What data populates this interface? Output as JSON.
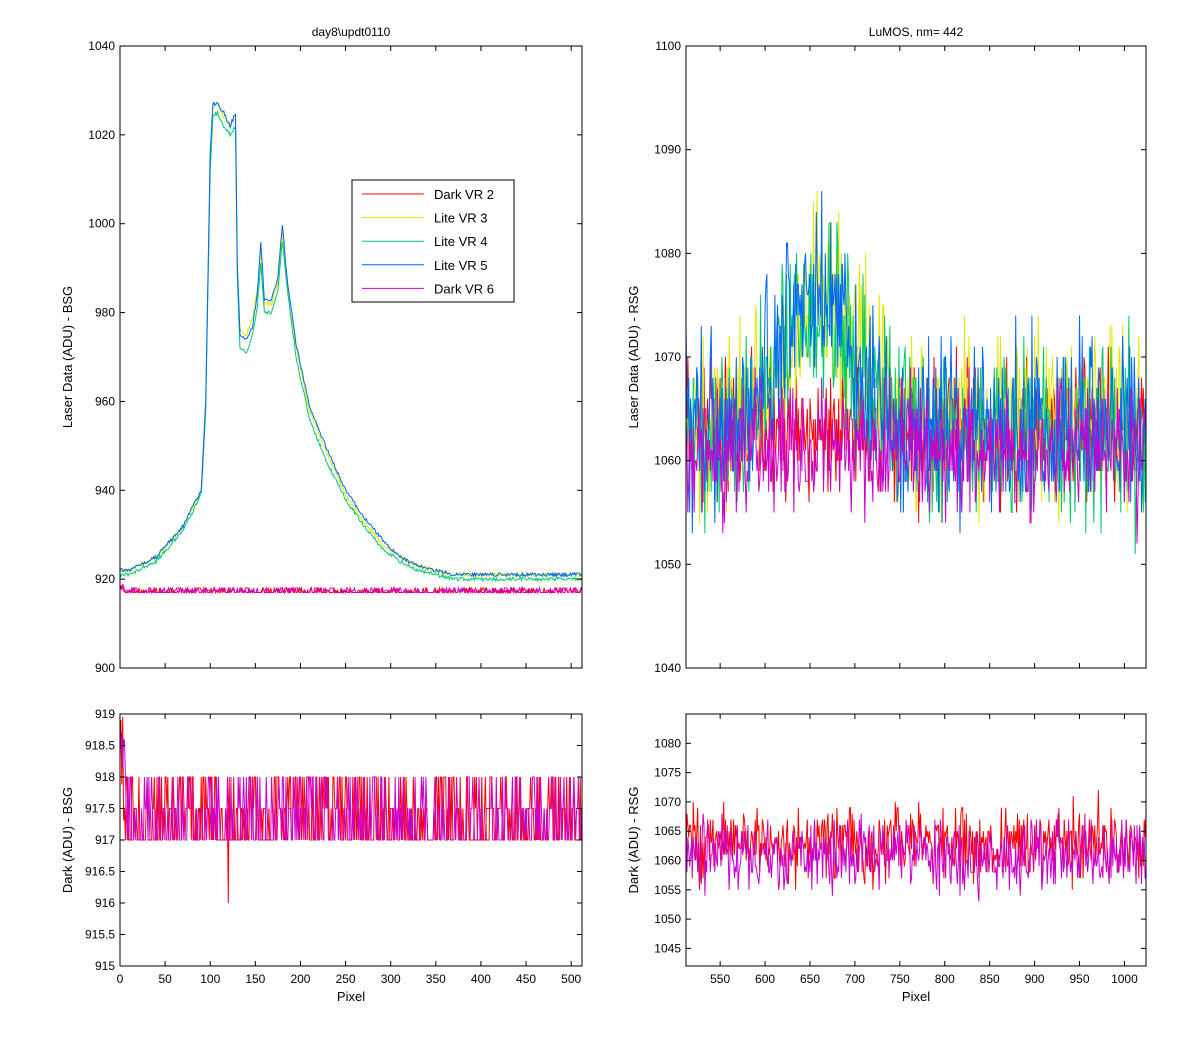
{
  "chart_data": [
    {
      "id": "top_left",
      "type": "line",
      "title": "day8\\updt0110",
      "xlabel": "",
      "ylabel": "Laser Data (ADU) - BSG",
      "xlim": [
        0,
        512
      ],
      "ylim": [
        900,
        1040
      ],
      "xticks": [
        0,
        50,
        100,
        150,
        200,
        250,
        300,
        350,
        400,
        450,
        500
      ],
      "yticks": [
        900,
        920,
        940,
        960,
        980,
        1000,
        1020,
        1040
      ],
      "xticklabels_visible": false,
      "legend": {
        "placement": "upper-center-right",
        "entries": [
          "Dark VR 2",
          "Lite VR 3",
          "Lite VR 4",
          "Lite VR 5",
          "Dark VR 6"
        ]
      },
      "series": [
        {
          "name": "Dark VR 2",
          "color": "#ff0000",
          "kind": "dark_bsg"
        },
        {
          "name": "Lite VR 3",
          "color": "#e6e600",
          "kind": "lite_bsg",
          "x": [
            0,
            10,
            40,
            70,
            90,
            95,
            100,
            103,
            108,
            115,
            122,
            128,
            130,
            133,
            140,
            147,
            152,
            156,
            160,
            168,
            175,
            180,
            185,
            195,
            210,
            230,
            250,
            270,
            290,
            310,
            330,
            350,
            370,
            390,
            420,
            460,
            512
          ],
          "y": [
            922,
            922,
            925,
            932,
            940,
            960,
            1015,
            1026,
            1027,
            1024,
            1022,
            1024,
            990,
            976,
            975,
            979,
            985,
            994,
            982,
            982,
            987,
            998,
            988,
            972,
            958,
            948,
            939,
            933,
            928,
            925,
            923,
            922,
            921,
            921,
            921,
            921,
            921
          ]
        },
        {
          "name": "Lite VR 4",
          "color": "#00cc66",
          "kind": "lite_bsg",
          "x": [
            0,
            10,
            40,
            70,
            90,
            95,
            100,
            103,
            108,
            115,
            122,
            128,
            130,
            133,
            140,
            147,
            152,
            156,
            160,
            168,
            175,
            180,
            185,
            195,
            210,
            230,
            250,
            270,
            290,
            310,
            330,
            350,
            370,
            390,
            420,
            460,
            512
          ],
          "y": [
            921,
            921,
            924,
            931,
            939,
            958,
            1012,
            1024,
            1025,
            1022,
            1020,
            1022,
            988,
            972,
            971,
            975,
            981,
            991,
            980,
            980,
            985,
            996,
            986,
            970,
            956,
            946,
            938,
            932,
            927,
            924,
            922,
            921,
            920,
            920,
            920,
            920,
            920
          ]
        },
        {
          "name": "Lite VR 5",
          "color": "#0066ff",
          "kind": "lite_bsg",
          "x": [
            0,
            10,
            40,
            70,
            90,
            95,
            100,
            103,
            108,
            115,
            122,
            128,
            130,
            133,
            140,
            147,
            152,
            156,
            160,
            168,
            175,
            180,
            185,
            195,
            210,
            230,
            250,
            270,
            290,
            310,
            330,
            350,
            370,
            390,
            420,
            460,
            512
          ],
          "y": [
            922,
            922,
            925,
            932,
            940,
            960,
            1016,
            1027,
            1027,
            1025,
            1022,
            1025,
            991,
            975,
            974,
            977,
            984,
            996,
            983,
            983,
            988,
            1000,
            988,
            973,
            959,
            949,
            940,
            934,
            929,
            925,
            923,
            922,
            921,
            921,
            921,
            921,
            921
          ]
        },
        {
          "name": "Dark VR 6",
          "color": "#cc00cc",
          "kind": "dark_bsg"
        }
      ]
    },
    {
      "id": "top_right",
      "type": "line",
      "title": "LuMOS, nm= 442",
      "xlabel": "",
      "ylabel": "Laser Data (ADU) - RSG",
      "xlim": [
        512,
        1024
      ],
      "ylim": [
        1040,
        1100
      ],
      "xticks": [
        550,
        600,
        650,
        700,
        750,
        800,
        850,
        900,
        950,
        1000
      ],
      "yticks": [
        1040,
        1050,
        1060,
        1070,
        1080,
        1090,
        1100
      ],
      "xticklabels_visible": false,
      "series": [
        {
          "name": "Dark VR 2",
          "color": "#ff0000",
          "kind": "dark_rsg",
          "mean": 1063,
          "spread": 4
        },
        {
          "name": "Lite VR 3",
          "color": "#e6e600",
          "kind": "lite_rsg",
          "peak_x": 665,
          "peak_y": 1076,
          "base_y": 1064,
          "spread": 5
        },
        {
          "name": "Lite VR 4",
          "color": "#00cc66",
          "kind": "lite_rsg",
          "peak_x": 660,
          "peak_y": 1075,
          "base_y": 1063,
          "spread": 5
        },
        {
          "name": "Lite VR 5",
          "color": "#0066ff",
          "kind": "lite_rsg",
          "peak_x": 655,
          "peak_y": 1076,
          "base_y": 1063,
          "spread": 5
        },
        {
          "name": "Dark VR 6",
          "color": "#cc00cc",
          "kind": "dark_rsg",
          "mean": 1061,
          "spread": 4
        }
      ]
    },
    {
      "id": "bottom_left",
      "type": "line",
      "title": "",
      "xlabel": "Pixel",
      "ylabel": "Dark (ADU) - BSG",
      "xlim": [
        0,
        512
      ],
      "ylim": [
        915,
        919
      ],
      "xticks": [
        0,
        50,
        100,
        150,
        200,
        250,
        300,
        350,
        400,
        450,
        500
      ],
      "yticks": [
        915,
        915.5,
        916,
        916.5,
        917,
        917.5,
        918,
        918.5,
        919
      ],
      "xticklabels_visible": true,
      "series": [
        {
          "name": "Dark VR 2",
          "color": "#ff0000",
          "kind": "dark_bsg",
          "dip_x": 120,
          "dip_y": 916
        },
        {
          "name": "Dark VR 6",
          "color": "#cc00cc",
          "kind": "dark_bsg"
        }
      ]
    },
    {
      "id": "bottom_right",
      "type": "line",
      "title": "",
      "xlabel": "Pixel",
      "ylabel": "Dark (ADU) - RSG",
      "xlim": [
        512,
        1024
      ],
      "ylim": [
        1042,
        1085
      ],
      "xticks": [
        550,
        600,
        650,
        700,
        750,
        800,
        850,
        900,
        950,
        1000
      ],
      "yticks": [
        1045,
        1050,
        1055,
        1060,
        1065,
        1070,
        1075,
        1080
      ],
      "xticklabels_visible": true,
      "series": [
        {
          "name": "Dark VR 2",
          "color": "#ff0000",
          "kind": "dark_rsg",
          "mean": 1063,
          "spread": 4
        },
        {
          "name": "Dark VR 6",
          "color": "#cc00cc",
          "kind": "dark_rsg",
          "mean": 1061,
          "spread": 4
        }
      ]
    }
  ]
}
